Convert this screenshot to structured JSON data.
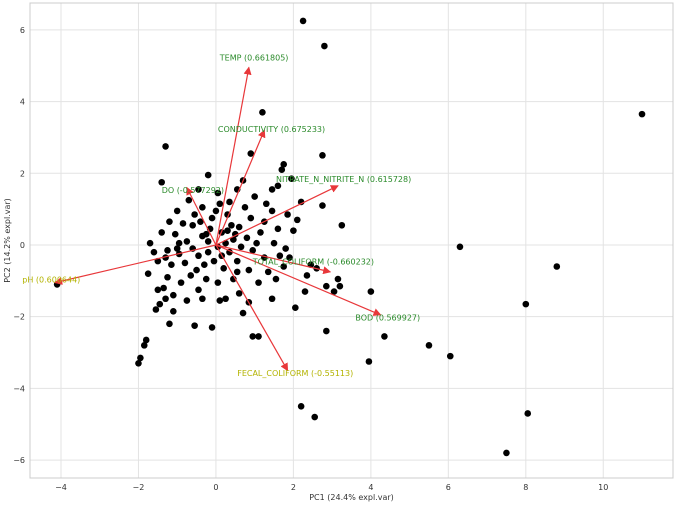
{
  "chart_data": {
    "type": "scatter",
    "title": "",
    "xlabel": "PC1 (24.4% expl.var)",
    "ylabel": "PC2 (14.2% expl.var)",
    "xlim": [
      -4.8,
      11.8
    ],
    "ylim": [
      -6.5,
      6.75
    ],
    "xticks": [
      -4,
      -2,
      0,
      2,
      4,
      6,
      8,
      10
    ],
    "yticks": [
      -6,
      -4,
      -2,
      0,
      2,
      4,
      6
    ],
    "grid": true,
    "point_color": "#000000",
    "arrow_color": "#e8373a",
    "points": [
      [
        2.25,
        6.25
      ],
      [
        2.8,
        5.55
      ],
      [
        11.0,
        3.65
      ],
      [
        1.2,
        3.7
      ],
      [
        -1.3,
        2.75
      ],
      [
        2.75,
        2.5
      ],
      [
        0.9,
        2.55
      ],
      [
        -1.4,
        1.75
      ],
      [
        6.3,
        -0.05
      ],
      [
        8.8,
        -0.6
      ],
      [
        8.0,
        -1.65
      ],
      [
        8.05,
        -4.7
      ],
      [
        7.5,
        -5.8
      ],
      [
        2.2,
        -4.5
      ],
      [
        2.55,
        -4.8
      ],
      [
        6.05,
        -3.1
      ],
      [
        5.5,
        -2.8
      ],
      [
        3.95,
        -3.25
      ],
      [
        4.35,
        -2.55
      ],
      [
        4.0,
        -1.3
      ],
      [
        2.85,
        -2.4
      ],
      [
        -4.1,
        -1.1
      ],
      [
        -2.0,
        -3.3
      ],
      [
        -1.95,
        -3.15
      ],
      [
        -1.85,
        -2.8
      ],
      [
        -1.8,
        -2.65
      ],
      [
        -1.55,
        -1.8
      ],
      [
        -1.45,
        -1.65
      ],
      [
        -1.3,
        -1.5
      ],
      [
        -1.35,
        -1.2
      ],
      [
        -1.1,
        -1.4
      ],
      [
        -1.2,
        -2.2
      ],
      [
        -0.55,
        -2.25
      ],
      [
        -0.1,
        -2.3
      ],
      [
        0.25,
        -1.5
      ],
      [
        0.7,
        -1.9
      ],
      [
        0.95,
        -2.55
      ],
      [
        1.1,
        -2.55
      ],
      [
        1.55,
        -0.95
      ],
      [
        2.05,
        -1.75
      ],
      [
        2.3,
        -1.3
      ],
      [
        2.85,
        -1.15
      ],
      [
        3.05,
        -1.3
      ],
      [
        3.2,
        -1.15
      ],
      [
        3.25,
        0.55
      ],
      [
        1.9,
        -0.35
      ],
      [
        2.35,
        -0.85
      ],
      [
        1.6,
        1.65
      ],
      [
        1.95,
        1.85
      ],
      [
        1.75,
        2.25
      ],
      [
        1.7,
        2.1
      ],
      [
        2.75,
        1.1
      ],
      [
        2.2,
        1.2
      ],
      [
        1.45,
        1.55
      ],
      [
        -0.35,
        0.25
      ],
      [
        -0.6,
        0.55
      ],
      [
        -0.2,
        0.1
      ],
      [
        0.15,
        0.35
      ],
      [
        0.05,
        -0.05
      ],
      [
        -0.45,
        -0.3
      ],
      [
        -0.75,
        0.1
      ],
      [
        -0.95,
        -0.25
      ],
      [
        -0.3,
        -0.55
      ],
      [
        0.35,
        -0.2
      ],
      [
        0.45,
        0.15
      ],
      [
        -0.55,
        0.85
      ],
      [
        -0.1,
        0.75
      ],
      [
        0.3,
        0.85
      ],
      [
        0.6,
        0.5
      ],
      [
        0.8,
        0.2
      ],
      [
        -0.85,
        0.6
      ],
      [
        -1.05,
        0.3
      ],
      [
        -1.25,
        -0.15
      ],
      [
        -1.15,
        -0.55
      ],
      [
        -0.65,
        -0.85
      ],
      [
        -0.25,
        -0.95
      ],
      [
        0.2,
        -0.65
      ],
      [
        0.55,
        -0.45
      ],
      [
        0.95,
        -0.15
      ],
      [
        1.15,
        0.35
      ],
      [
        1.25,
        0.65
      ],
      [
        0.75,
        1.05
      ],
      [
        0.1,
        1.15
      ],
      [
        -0.35,
        1.05
      ],
      [
        -0.7,
        1.25
      ],
      [
        -1.0,
        0.95
      ],
      [
        -1.4,
        0.35
      ],
      [
        -1.5,
        -0.45
      ],
      [
        -1.25,
        -0.9
      ],
      [
        -0.9,
        -1.05
      ],
      [
        -0.45,
        -1.25
      ],
      [
        0.05,
        -1.05
      ],
      [
        0.45,
        -0.95
      ],
      [
        0.85,
        -0.7
      ],
      [
        1.25,
        -0.35
      ],
      [
        1.5,
        0.05
      ],
      [
        1.6,
        0.45
      ],
      [
        1.45,
        0.95
      ],
      [
        1.0,
        1.35
      ],
      [
        0.55,
        1.55
      ],
      [
        0.05,
        1.45
      ],
      [
        -0.45,
        1.55
      ],
      [
        -0.15,
        0.45
      ],
      [
        0.25,
        0.05
      ],
      [
        -0.6,
        -0.1
      ],
      [
        0.65,
        -0.05
      ],
      [
        -0.05,
        -0.45
      ],
      [
        0.4,
        0.55
      ],
      [
        -0.4,
        0.65
      ],
      [
        0.0,
        0.95
      ],
      [
        0.9,
        0.75
      ],
      [
        -0.8,
        -0.5
      ],
      [
        -1.7,
        0.05
      ],
      [
        -1.6,
        -0.2
      ],
      [
        -1.0,
        -0.1
      ],
      [
        -0.2,
        -0.2
      ],
      [
        0.15,
        -0.3
      ],
      [
        0.5,
        0.3
      ],
      [
        1.05,
        0.05
      ],
      [
        1.35,
        -0.75
      ],
      [
        1.8,
        -0.1
      ],
      [
        2.0,
        0.4
      ],
      [
        2.1,
        0.7
      ],
      [
        1.85,
        0.85
      ],
      [
        2.45,
        -0.55
      ],
      [
        1.75,
        -0.6
      ],
      [
        1.1,
        -1.05
      ],
      [
        0.6,
        -1.35
      ],
      [
        0.1,
        -1.55
      ],
      [
        -0.75,
        -1.55
      ],
      [
        -1.1,
        -1.85
      ],
      [
        -1.5,
        -1.25
      ],
      [
        -1.75,
        -0.8
      ],
      [
        -1.2,
        0.65
      ],
      [
        -0.2,
        1.95
      ],
      [
        0.35,
        1.2
      ],
      [
        0.7,
        1.8
      ],
      [
        1.3,
        1.15
      ],
      [
        -0.5,
        -0.7
      ],
      [
        -0.95,
        0.05
      ],
      [
        0.3,
        0.4
      ],
      [
        -0.25,
        0.3
      ],
      [
        0.55,
        -0.75
      ],
      [
        1.65,
        -0.3
      ],
      [
        2.6,
        -0.65
      ],
      [
        3.15,
        -0.95
      ],
      [
        -1.3,
        -0.35
      ],
      [
        -0.35,
        -1.5
      ],
      [
        0.85,
        -1.6
      ],
      [
        1.45,
        -1.5
      ]
    ],
    "vectors": [
      {
        "label": "TEMP (0.661805)",
        "x": 0.85,
        "y": 4.95,
        "color": "#2a8a2a",
        "lx": 0.1,
        "ly": 5.15,
        "anchor": "start"
      },
      {
        "label": "CONDUCTIVITY (0.675233)",
        "x": 1.25,
        "y": 3.2,
        "color": "#2a8a2a",
        "lx": 0.05,
        "ly": 3.15,
        "anchor": "start"
      },
      {
        "label": "NITRATE_N_NITRITE_N (0.615728)",
        "x": 3.15,
        "y": 1.65,
        "color": "#2a8a2a",
        "lx": 1.55,
        "ly": 1.75,
        "anchor": "start"
      },
      {
        "label": "DO (-0.577292)",
        "x": -0.75,
        "y": 1.6,
        "color": "#2a8a2a",
        "lx": -1.4,
        "ly": 1.45,
        "anchor": "start"
      },
      {
        "label": "TOTAL_COLIFORM (-0.660232)",
        "x": 2.95,
        "y": -0.75,
        "color": "#2a8a2a",
        "lx": 0.95,
        "ly": -0.55,
        "anchor": "start"
      },
      {
        "label": "BOD (0.569927)",
        "x": 4.25,
        "y": -1.95,
        "color": "#2a8a2a",
        "lx": 3.6,
        "ly": -2.1,
        "anchor": "start"
      },
      {
        "label": "FECAL_COLIFORM (-0.55113)",
        "x": 1.85,
        "y": -3.5,
        "color": "#b3b300",
        "lx": 0.55,
        "ly": -3.65,
        "anchor": "start"
      },
      {
        "label": "pH (0.600644)",
        "x": -4.15,
        "y": -1.05,
        "color": "#b3b300",
        "lx": -5.0,
        "ly": -1.05,
        "anchor": "start"
      }
    ]
  }
}
